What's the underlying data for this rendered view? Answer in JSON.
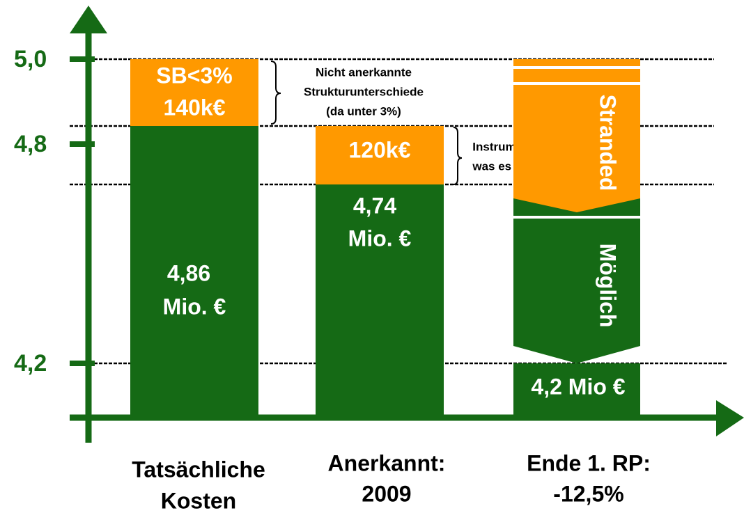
{
  "axis": {
    "ticks": [
      "5,0",
      "4,8",
      "4,2"
    ]
  },
  "bars": [
    {
      "top_label": "SB<3%",
      "top_value": "140k€",
      "bottom_lines": [
        "4,86",
        "Mio. €"
      ],
      "caption": [
        "Tatsächliche",
        "Kosten"
      ]
    },
    {
      "top_value": "120k€",
      "bottom_lines": [
        "4,74",
        "Mio. €"
      ],
      "caption": [
        "Anerkannt:",
        "2009"
      ]
    },
    {
      "upper_arrow": "Stranded",
      "lower_arrow": "Möglich",
      "base_label": "4,2 Mio €",
      "caption": [
        "Ende 1. RP:",
        "-12,5%"
      ]
    }
  ],
  "annotations": [
    {
      "lines": [
        "Nicht anerkannte",
        "Strukturunterschiede",
        "(da unter 3%)"
      ]
    },
    {
      "lines": [
        "Instrumente für das,",
        "was es nicht mehr gibt"
      ]
    }
  ]
}
